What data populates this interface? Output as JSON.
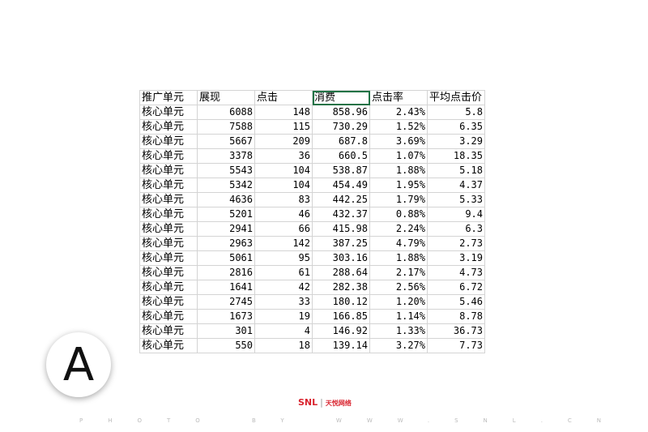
{
  "table": {
    "header": [
      "推广单元",
      "展现",
      "点击",
      "消费",
      "点击率",
      "平均点击价"
    ],
    "rows": [
      [
        "核心单元",
        "6088",
        "148",
        "858.96",
        "2.43%",
        "5.8"
      ],
      [
        "核心单元",
        "7588",
        "115",
        "730.29",
        "1.52%",
        "6.35"
      ],
      [
        "核心单元",
        "5667",
        "209",
        "687.8",
        "3.69%",
        "3.29"
      ],
      [
        "核心单元",
        "3378",
        "36",
        "660.5",
        "1.07%",
        "18.35"
      ],
      [
        "核心单元",
        "5543",
        "104",
        "538.87",
        "1.88%",
        "5.18"
      ],
      [
        "核心单元",
        "5342",
        "104",
        "454.49",
        "1.95%",
        "4.37"
      ],
      [
        "核心单元",
        "4636",
        "83",
        "442.25",
        "1.79%",
        "5.33"
      ],
      [
        "核心单元",
        "5201",
        "46",
        "432.37",
        "0.88%",
        "9.4"
      ],
      [
        "核心单元",
        "2941",
        "66",
        "415.98",
        "2.24%",
        "6.3"
      ],
      [
        "核心单元",
        "2963",
        "142",
        "387.25",
        "4.79%",
        "2.73"
      ],
      [
        "核心单元",
        "5061",
        "95",
        "303.16",
        "1.88%",
        "3.19"
      ],
      [
        "核心单元",
        "2816",
        "61",
        "288.64",
        "2.17%",
        "4.73"
      ],
      [
        "核心单元",
        "1641",
        "42",
        "282.38",
        "2.56%",
        "6.72"
      ],
      [
        "核心单元",
        "2745",
        "33",
        "180.12",
        "1.20%",
        "5.46"
      ],
      [
        "核心单元",
        "1673",
        "19",
        "166.85",
        "1.14%",
        "8.78"
      ],
      [
        "核心单元",
        "301",
        "4",
        "146.92",
        "1.33%",
        "36.73"
      ],
      [
        "核心单元",
        "550",
        "18",
        "139.14",
        "3.27%",
        "7.73"
      ]
    ]
  },
  "badge": "A",
  "logo": {
    "brand": "SNL",
    "name": "天悦网络"
  },
  "footer": "PHOTO BY WWW.SNL.CN"
}
